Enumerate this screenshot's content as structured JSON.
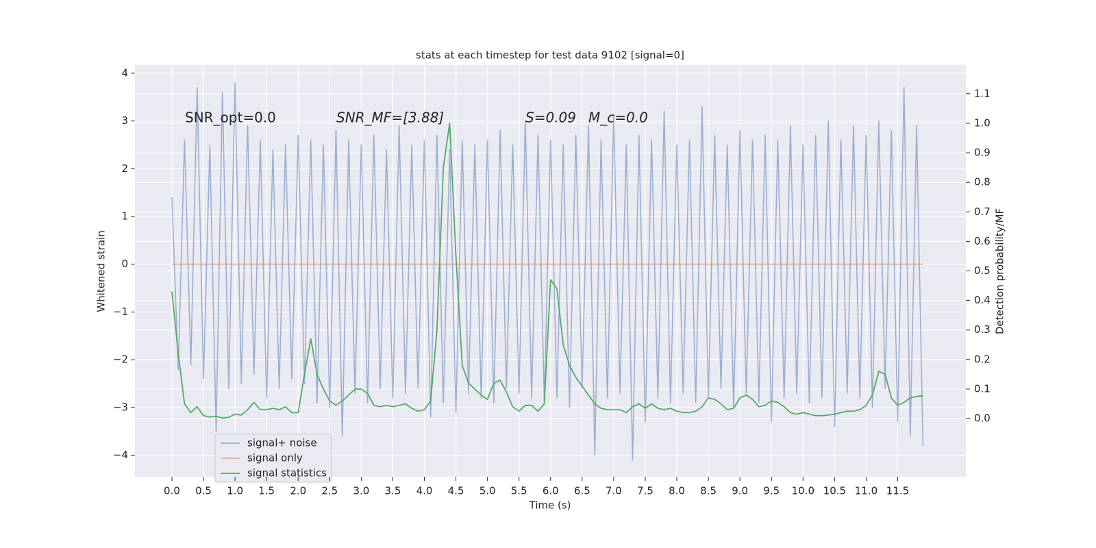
{
  "chart_data": {
    "type": "line",
    "title": "stats at each timestep for test data 9102 [signal=0]",
    "xlabel": "Time (s)",
    "ylabel": "Whitened strain",
    "y2label": "Detection probability/MF",
    "annotations": [
      "SNR_opt=0.0",
      "SNR_MF=[3.88]",
      "S=0.09",
      "M_c=0.0"
    ],
    "grid": true,
    "legend": "lower left",
    "xlim": [
      -0.586,
      12.58
    ],
    "ylim": [
      -4.45,
      4.17
    ],
    "y2lim": [
      -0.197,
      1.197
    ],
    "xticks": [
      {
        "value": 0,
        "label": "0.0"
      },
      0.5,
      {
        "value": 1,
        "label": "1.0"
      },
      1.5,
      {
        "value": 2,
        "label": "2.0"
      },
      2.5,
      {
        "value": 3,
        "label": "3.0"
      },
      3.5,
      {
        "value": 4,
        "label": "4.0"
      },
      4.5,
      {
        "value": 5,
        "label": "5.0"
      },
      5.5,
      {
        "value": 6,
        "label": "6.0"
      },
      6.5,
      {
        "value": 7,
        "label": "7.0"
      },
      7.5,
      {
        "value": 8,
        "label": "8.0"
      },
      8.5,
      {
        "value": 9,
        "label": "9.0"
      },
      9.5,
      {
        "value": 10,
        "label": "10.0"
      },
      10.5,
      {
        "value": 11,
        "label": "11.0"
      },
      11.5
    ],
    "yticks": [
      {
        "value": -4,
        "label": "−4"
      },
      {
        "value": -3,
        "label": "−3"
      },
      {
        "value": -2,
        "label": "−2"
      },
      {
        "value": -1,
        "label": "−1"
      },
      0,
      1,
      2,
      3,
      4
    ],
    "y2ticks": [
      {
        "value": 0,
        "label": "0.0"
      },
      0.1,
      0.2,
      0.3,
      0.4,
      0.5,
      0.6,
      0.7,
      0.8,
      0.9,
      {
        "value": 1,
        "label": "1.0"
      },
      1.1
    ],
    "x": [
      0,
      0.1,
      0.2,
      0.3,
      0.4,
      0.5,
      0.6,
      0.7,
      0.8,
      0.9,
      1,
      1.1,
      1.2,
      1.3,
      1.4,
      1.5,
      1.6,
      1.7,
      1.8,
      1.9,
      2,
      2.1,
      2.2,
      2.3,
      2.4,
      2.5,
      2.6,
      2.7,
      2.8,
      2.9,
      3,
      3.1,
      3.2,
      3.3,
      3.4,
      3.5,
      3.6,
      3.7,
      3.8,
      3.9,
      4,
      4.1,
      4.2,
      4.3,
      4.4,
      4.5,
      4.6,
      4.7,
      4.8,
      4.9,
      5,
      5.1,
      5.2,
      5.3,
      5.4,
      5.5,
      5.6,
      5.7,
      5.8,
      5.9,
      6,
      6.1,
      6.2,
      6.3,
      6.4,
      6.5,
      6.6,
      6.7,
      6.8,
      6.9,
      7,
      7.1,
      7.2,
      7.3,
      7.4,
      7.5,
      7.6,
      7.7,
      7.8,
      7.9,
      8,
      8.1,
      8.2,
      8.3,
      8.4,
      8.5,
      8.6,
      8.7,
      8.8,
      8.9,
      9,
      9.1,
      9.2,
      9.3,
      9.4,
      9.5,
      9.6,
      9.7,
      9.8,
      9.9,
      10,
      10.1,
      10.2,
      10.3,
      10.4,
      10.5,
      10.6,
      10.7,
      10.8,
      10.9,
      11,
      11.1,
      11.2,
      11.3,
      11.4,
      11.5,
      11.6,
      11.7,
      11.8,
      11.9
    ],
    "series": [
      {
        "name": "signal+ noise",
        "color": "#4c72b0",
        "axis": "y",
        "values": [
          1.4,
          -2.2,
          2.6,
          -2.1,
          3.7,
          -2.4,
          2.5,
          -3.5,
          3.6,
          -2.6,
          3.8,
          -2.5,
          2.9,
          -2.3,
          2.6,
          -2.8,
          2.4,
          -2.6,
          2.5,
          -2.4,
          2.7,
          -2.5,
          2.6,
          -2.9,
          2.5,
          -3.0,
          2.8,
          -3.6,
          2.6,
          -2.7,
          2.5,
          -2.9,
          2.7,
          -2.6,
          2.4,
          -2.8,
          2.9,
          -2.7,
          2.5,
          -2.6,
          2.6,
          -3.2,
          2.7,
          -2.9,
          2.4,
          -3.1,
          2.6,
          -2.7,
          2.5,
          -2.8,
          2.6,
          -2.9,
          2.8,
          -2.6,
          2.5,
          -2.7,
          3.0,
          -2.8,
          2.7,
          -2.9,
          2.6,
          -2.8,
          2.5,
          -3.0,
          2.7,
          -2.6,
          2.9,
          -4.0,
          2.6,
          -2.8,
          3.1,
          -2.7,
          2.5,
          -4.1,
          2.7,
          -3.3,
          2.6,
          -2.8,
          3.2,
          -2.9,
          2.5,
          -2.7,
          2.6,
          -2.9,
          3.3,
          -2.8,
          2.7,
          -2.6,
          2.5,
          -3.0,
          2.8,
          -2.7,
          2.6,
          -2.9,
          2.7,
          -3.3,
          2.6,
          -2.8,
          2.9,
          -2.7,
          2.5,
          -2.9,
          2.7,
          -2.8,
          3.0,
          -3.4,
          2.6,
          -2.7,
          2.9,
          -2.8,
          2.7,
          -3.0,
          3.0,
          -2.6,
          2.8,
          -3.3,
          3.7,
          -3.6,
          2.9,
          -3.8
        ]
      },
      {
        "name": "signal only",
        "color": "#dd8452",
        "axis": "y",
        "values": [
          0,
          0,
          0,
          0,
          0,
          0,
          0,
          0,
          0,
          0,
          0,
          0,
          0,
          0,
          0,
          0,
          0,
          0,
          0,
          0,
          0,
          0,
          0,
          0,
          0,
          0,
          0,
          0,
          0,
          0,
          0,
          0,
          0,
          0,
          0,
          0,
          0,
          0,
          0,
          0,
          0,
          0,
          0,
          0,
          0,
          0,
          0,
          0,
          0,
          0,
          0,
          0,
          0,
          0,
          0,
          0,
          0,
          0,
          0,
          0,
          0,
          0,
          0,
          0,
          0,
          0,
          0,
          0,
          0,
          0,
          0,
          0,
          0,
          0,
          0,
          0,
          0,
          0,
          0,
          0,
          0,
          0,
          0,
          0,
          0,
          0,
          0,
          0,
          0,
          0,
          0,
          0,
          0,
          0,
          0,
          0,
          0,
          0,
          0,
          0,
          0,
          0,
          0,
          0,
          0,
          0,
          0,
          0,
          0,
          0,
          0,
          0,
          0,
          0,
          0,
          0,
          0,
          0,
          0,
          0
        ]
      },
      {
        "name": "signal statistics",
        "color": "#55a868",
        "axis": "y2",
        "values": [
          0.43,
          0.22,
          0.05,
          0.02,
          0.04,
          0.01,
          0.005,
          0.008,
          0.002,
          0.004,
          0.015,
          0.012,
          0.03,
          0.055,
          0.03,
          0.03,
          0.035,
          0.03,
          0.04,
          0.02,
          0.02,
          0.15,
          0.27,
          0.15,
          0.1,
          0.06,
          0.045,
          0.06,
          0.08,
          0.1,
          0.1,
          0.085,
          0.045,
          0.04,
          0.045,
          0.04,
          0.045,
          0.05,
          0.035,
          0.025,
          0.03,
          0.06,
          0.3,
          0.85,
          1.0,
          0.55,
          0.18,
          0.12,
          0.1,
          0.08,
          0.065,
          0.12,
          0.13,
          0.09,
          0.04,
          0.025,
          0.045,
          0.045,
          0.025,
          0.05,
          0.47,
          0.44,
          0.25,
          0.18,
          0.14,
          0.11,
          0.08,
          0.05,
          0.035,
          0.03,
          0.03,
          0.03,
          0.02,
          0.04,
          0.05,
          0.035,
          0.05,
          0.035,
          0.03,
          0.035,
          0.025,
          0.02,
          0.02,
          0.025,
          0.04,
          0.07,
          0.065,
          0.05,
          0.03,
          0.035,
          0.07,
          0.08,
          0.065,
          0.04,
          0.045,
          0.06,
          0.055,
          0.04,
          0.02,
          0.015,
          0.02,
          0.015,
          0.01,
          0.01,
          0.012,
          0.015,
          0.02,
          0.025,
          0.025,
          0.03,
          0.045,
          0.08,
          0.16,
          0.15,
          0.07,
          0.045,
          0.055,
          0.07,
          0.075,
          0.077
        ]
      }
    ]
  }
}
